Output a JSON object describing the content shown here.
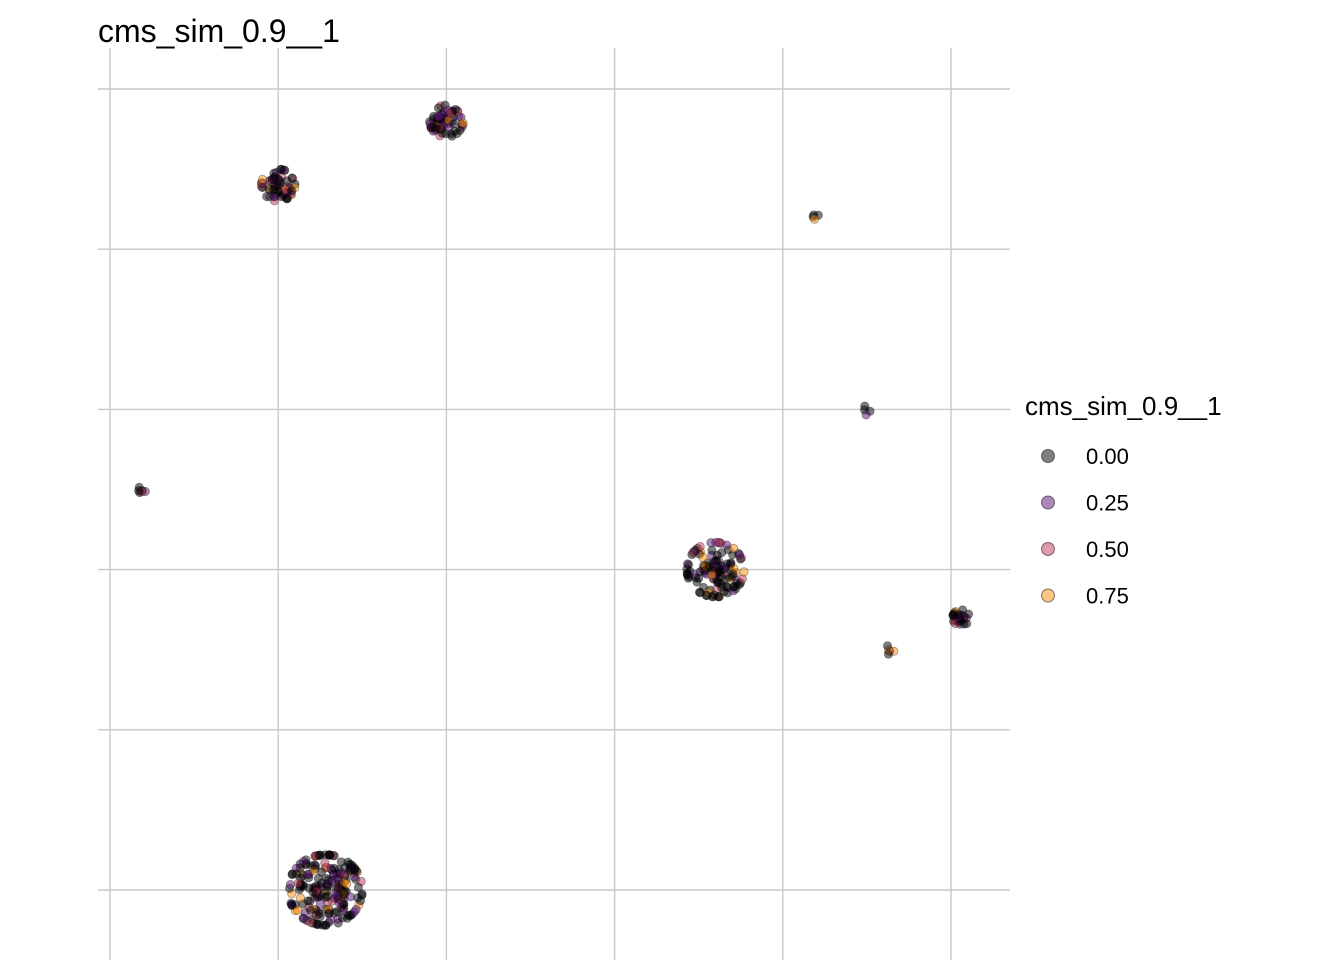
{
  "chart_data": {
    "type": "scatter",
    "title": "cms_sim_0.9__1",
    "xlabel": "",
    "ylabel": "",
    "xlim": [
      -0.3,
      5.0
    ],
    "ylim": [
      -0.4,
      5.2
    ],
    "x_gridlines": [
      0,
      1,
      2,
      3,
      4,
      5
    ],
    "y_gridlines": [
      0,
      1,
      2,
      3,
      4,
      5
    ],
    "tick_labels_shown": false,
    "grid": true,
    "point_alpha": 0.5,
    "legend": {
      "title": "cms_sim_0.9__1",
      "placement": "right",
      "entries": [
        {
          "label": "0.00",
          "value": 0.0,
          "color": "#000004"
        },
        {
          "label": "0.25",
          "value": 0.25,
          "color": "#56106E"
        },
        {
          "label": "0.50",
          "value": 0.5,
          "color": "#BB3754"
        },
        {
          "label": "0.75",
          "value": 0.75,
          "color": "#F98C0A"
        }
      ]
    },
    "colormap": "inferno",
    "clusters": [
      {
        "x_center": 2.0,
        "y_center": 4.8,
        "spread": 0.1,
        "n_points": 60
      },
      {
        "x_center": 1.0,
        "y_center": 4.4,
        "spread": 0.1,
        "n_points": 60
      },
      {
        "x_center": 4.2,
        "y_center": 4.2,
        "spread": 0.03,
        "n_points": 4
      },
      {
        "x_center": 4.5,
        "y_center": 3.0,
        "spread": 0.035,
        "n_points": 4
      },
      {
        "x_center": 3.6,
        "y_center": 2.0,
        "spread": 0.17,
        "n_points": 120
      },
      {
        "x_center": 0.2,
        "y_center": 2.5,
        "spread": 0.03,
        "n_points": 6
      },
      {
        "x_center": 5.06,
        "y_center": 1.7,
        "spread": 0.05,
        "n_points": 25
      },
      {
        "x_center": 4.64,
        "y_center": 1.5,
        "spread": 0.03,
        "n_points": 5
      },
      {
        "x_center": 1.28,
        "y_center": 0.0,
        "spread": 0.22,
        "n_points": 200
      }
    ]
  }
}
